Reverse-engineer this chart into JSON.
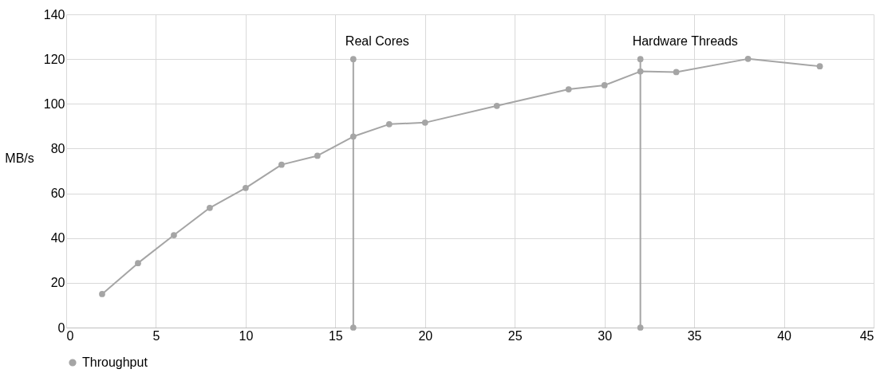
{
  "chart_data": {
    "type": "line",
    "ylabel": "MB/s",
    "series": [
      {
        "name": "Throughput",
        "color": "#a5a5a5",
        "x": [
          2,
          4,
          6,
          8,
          10,
          12,
          14,
          16,
          18,
          20,
          24,
          28,
          30,
          32,
          34,
          38,
          42
        ],
        "values": [
          15,
          28.8,
          41.3,
          53.5,
          62.4,
          72.8,
          76.8,
          85.4,
          90.9,
          91.6,
          99.1,
          106.5,
          108.3,
          114.5,
          114.2,
          120.1,
          116.8
        ]
      },
      {
        "color": "#a5a5a5",
        "x": [
          16,
          16
        ],
        "values": [
          0,
          120
        ]
      },
      {
        "color": "#a5a5a5",
        "x": [
          32,
          32
        ],
        "values": [
          0,
          120
        ]
      }
    ],
    "annotations": [
      {
        "text": "Real Cores",
        "x": 16,
        "y": 120
      },
      {
        "text": "Hardware Threads",
        "x": 32,
        "y": 120
      }
    ],
    "xlim": [
      0,
      45
    ],
    "xticks": [
      0,
      5,
      10,
      15,
      20,
      25,
      30,
      35,
      40,
      45
    ],
    "ylim": [
      0,
      140
    ],
    "yticks": [
      0,
      20,
      40,
      60,
      80,
      100,
      120,
      140
    ],
    "grid": true,
    "legend": "bottom",
    "marker": "circle",
    "line_style": "solid"
  }
}
